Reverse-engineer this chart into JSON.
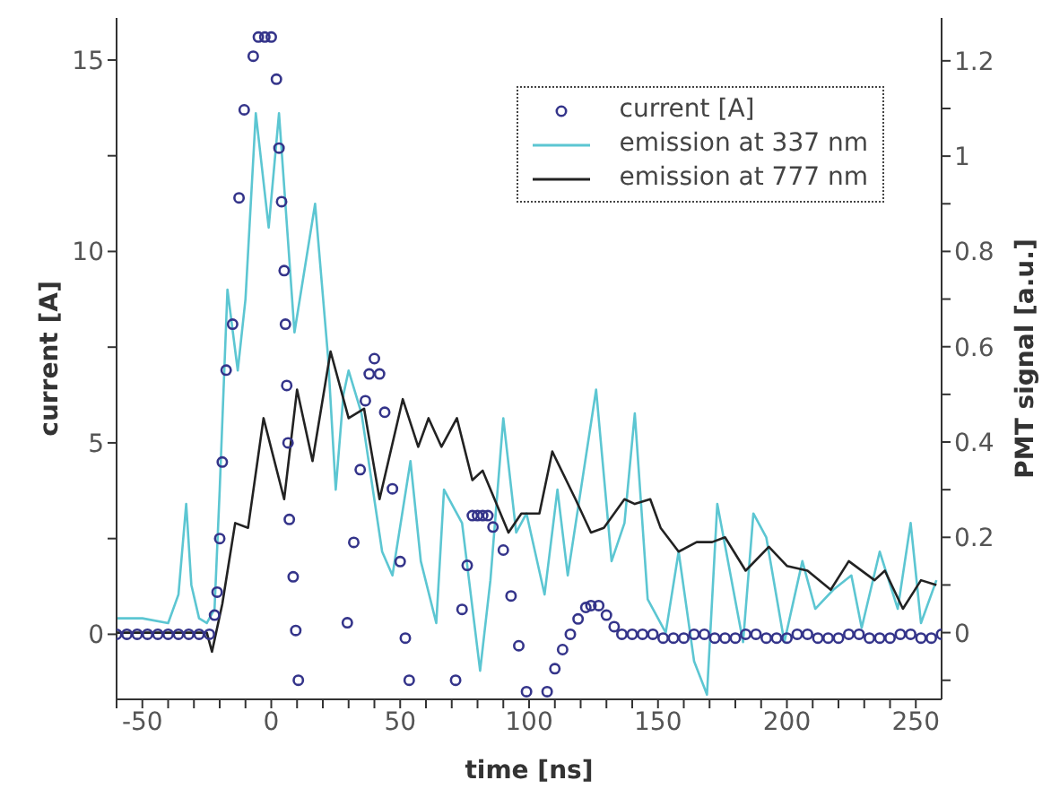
{
  "chart_data": {
    "type": "line",
    "xlabel": "time [ns]",
    "ylabel": "current [A]",
    "y2label": "PMT signal [a.u.]",
    "xlim": [
      -60,
      260
    ],
    "ylim": [
      -1.7,
      16.1
    ],
    "y2lim": [
      -0.14,
      1.29
    ],
    "xticks": [
      {
        "value": -60,
        "label": null
      },
      -50,
      {
        "value": -40,
        "label": null
      },
      {
        "value": -30,
        "label": null
      },
      {
        "value": -20,
        "label": null
      },
      {
        "value": -10,
        "label": null
      },
      0,
      {
        "value": 10,
        "label": null
      },
      {
        "value": 20,
        "label": null
      },
      {
        "value": 30,
        "label": null
      },
      {
        "value": 40,
        "label": null
      },
      50,
      {
        "value": 60,
        "label": null
      },
      {
        "value": 70,
        "label": null
      },
      {
        "value": 80,
        "label": null
      },
      {
        "value": 90,
        "label": null
      },
      100,
      {
        "value": 110,
        "label": null
      },
      {
        "value": 120,
        "label": null
      },
      {
        "value": 130,
        "label": null
      },
      {
        "value": 140,
        "label": null
      },
      150,
      {
        "value": 160,
        "label": null
      },
      {
        "value": 170,
        "label": null
      },
      {
        "value": 180,
        "label": null
      },
      {
        "value": 190,
        "label": null
      },
      200,
      {
        "value": 210,
        "label": null
      },
      {
        "value": 220,
        "label": null
      },
      {
        "value": 230,
        "label": null
      },
      {
        "value": 240,
        "label": null
      },
      250
    ],
    "yticks": [
      0,
      {
        "value": 2.5,
        "label": null
      },
      5,
      {
        "value": 7.5,
        "label": null
      },
      10,
      {
        "value": 12.5,
        "label": null
      },
      15
    ],
    "y2ticks": [
      {
        "value": -0.1,
        "label": null
      },
      0,
      {
        "value": 0.1,
        "label": null
      },
      0.2,
      {
        "value": 0.3,
        "label": null
      },
      0.4,
      {
        "value": 0.5,
        "label": null
      },
      0.6,
      {
        "value": 0.7,
        "label": null
      },
      0.8,
      {
        "value": 0.9,
        "label": null
      },
      1,
      {
        "value": 1.1,
        "label": null
      },
      1.2
    ],
    "grid": false,
    "legend": "top right",
    "series": [
      {
        "name": "current [A]",
        "type": "scatter",
        "marker": "circle",
        "color": "#34348a",
        "x": [
          -60,
          -56,
          -52,
          -48,
          -44,
          -40,
          -36,
          -32,
          -28,
          -24,
          -22,
          -21,
          -20,
          -19,
          -17.5,
          -15,
          -12.5,
          -10.5,
          -7,
          -5,
          -2.5,
          0,
          2,
          3,
          4,
          5,
          5.5,
          6,
          6.5,
          7,
          8.5,
          9.5,
          10.5,
          29.5,
          32,
          34.5,
          36.5,
          38,
          40,
          42,
          44,
          47,
          50,
          52,
          53.5,
          71.5,
          74,
          76,
          78,
          80,
          82,
          84,
          86,
          90,
          93,
          96,
          99,
          107,
          110,
          113,
          116,
          119,
          122,
          124,
          127,
          130,
          133,
          136,
          140,
          144,
          148,
          152,
          156,
          160,
          164,
          168,
          172,
          176,
          180,
          184,
          188,
          192,
          196,
          200,
          204,
          208,
          212,
          216,
          220,
          224,
          228,
          232,
          236,
          240,
          244,
          248,
          252,
          256,
          260
        ],
        "values": [
          0,
          0,
          0,
          0,
          0,
          0,
          0,
          0,
          0,
          0,
          0.5,
          1.1,
          2.5,
          4.5,
          6.9,
          8.1,
          11.4,
          13.7,
          15.1,
          15.6,
          15.6,
          15.6,
          14.5,
          12.7,
          11.3,
          9.5,
          8.1,
          6.5,
          5,
          3,
          1.5,
          0.1,
          -1.2,
          0.3,
          2.4,
          4.3,
          6.1,
          6.8,
          7.2,
          6.8,
          5.8,
          3.8,
          1.9,
          -0.1,
          -1.2,
          -1.2,
          0.65,
          1.8,
          3.1,
          3.1,
          3.1,
          3.1,
          2.8,
          2.2,
          1,
          -0.3,
          -1.5,
          -1.5,
          -0.9,
          -0.4,
          0,
          0.4,
          0.7,
          0.75,
          0.75,
          0.5,
          0.2,
          0,
          0,
          0,
          0,
          -0.1,
          -0.1,
          -0.1,
          0,
          0,
          -0.1,
          -0.1,
          -0.1,
          0,
          0,
          -0.1,
          -0.1,
          -0.1,
          0,
          0,
          -0.1,
          -0.1,
          -0.1,
          0,
          0,
          -0.1,
          -0.1,
          -0.1,
          0,
          0,
          -0.1,
          -0.1,
          0
        ]
      },
      {
        "name": "emission at 337 nm",
        "type": "line",
        "axis": "y2",
        "marker": "none",
        "line_style": "solid",
        "color": "#5cc6d2",
        "x": [
          -60,
          -50,
          -40,
          -36,
          -33,
          -31,
          -28,
          -25,
          -22,
          -20,
          -17,
          -13,
          -10,
          -6,
          -1,
          3,
          9,
          17,
          22,
          25,
          28,
          30,
          35,
          43,
          47,
          54,
          58,
          64,
          67,
          74,
          81,
          85,
          90,
          95,
          99,
          106,
          111,
          115,
          126,
          132,
          137,
          141,
          146,
          153,
          158,
          164,
          169,
          173,
          183,
          187,
          192,
          199,
          206,
          211,
          218,
          225,
          229,
          236,
          243,
          248,
          252,
          258
        ],
        "values": [
          0.03,
          0.03,
          0.02,
          0.08,
          0.27,
          0.1,
          0.03,
          0.02,
          0.05,
          0.3,
          0.72,
          0.55,
          0.7,
          1.09,
          0.85,
          1.09,
          0.63,
          0.9,
          0.58,
          0.3,
          0.5,
          0.55,
          0.46,
          0.17,
          0.12,
          0.36,
          0.15,
          0.02,
          0.3,
          0.23,
          -0.08,
          0.11,
          0.45,
          0.21,
          0.25,
          0.08,
          0.3,
          0.12,
          0.51,
          0.15,
          0.23,
          0.46,
          0.07,
          0,
          0.17,
          -0.06,
          -0.13,
          0.27,
          -0.02,
          0.25,
          0.2,
          -0.02,
          0.15,
          0.05,
          0.09,
          0.12,
          0.01,
          0.17,
          0.05,
          0.23,
          0.02,
          0.11
        ]
      },
      {
        "name": "emission at 777 nm",
        "type": "line",
        "axis": "y2",
        "marker": "none",
        "line_style": "solid",
        "color": "#222222",
        "x": [
          -60,
          -40,
          -25,
          -23,
          -19,
          -14,
          -9,
          -3,
          5,
          10,
          16,
          23,
          30,
          36,
          42,
          51,
          57,
          61,
          66,
          72,
          78,
          82,
          92,
          97,
          104,
          109,
          118,
          124,
          129,
          137,
          141,
          147,
          151,
          158,
          165,
          171,
          176,
          184,
          193,
          200,
          208,
          217,
          224,
          234,
          238,
          245,
          252,
          258
        ],
        "values": [
          0,
          0,
          0,
          -0.04,
          0.06,
          0.23,
          0.22,
          0.45,
          0.28,
          0.51,
          0.36,
          0.59,
          0.45,
          0.47,
          0.28,
          0.49,
          0.39,
          0.45,
          0.39,
          0.45,
          0.32,
          0.34,
          0.21,
          0.25,
          0.25,
          0.38,
          0.28,
          0.21,
          0.22,
          0.28,
          0.27,
          0.28,
          0.22,
          0.17,
          0.19,
          0.19,
          0.2,
          0.13,
          0.18,
          0.14,
          0.13,
          0.09,
          0.15,
          0.11,
          0.13,
          0.05,
          0.11,
          0.1
        ]
      }
    ]
  }
}
